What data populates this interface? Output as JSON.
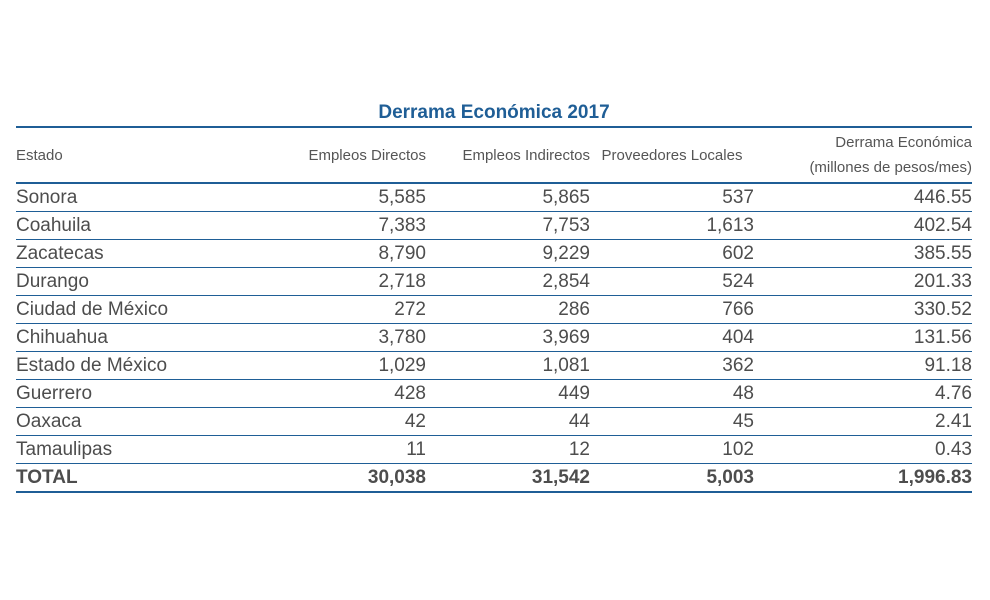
{
  "title": "Derrama Económica 2017",
  "headers": {
    "estado": "Estado",
    "empleos_directos": "Empleos Directos",
    "empleos_indirectos": "Empleos Indirectos",
    "proveedores_locales": "Proveedores Locales",
    "derrama_line1": "Derrama Económica",
    "derrama_line2": "(millones de pesos/mes)"
  },
  "rows": [
    {
      "estado": "Sonora",
      "directos": "5,585",
      "indirectos": "5,865",
      "proveedores": "537",
      "derrama": "446.55"
    },
    {
      "estado": "Coahuila",
      "directos": "7,383",
      "indirectos": "7,753",
      "proveedores": "1,613",
      "derrama": "402.54"
    },
    {
      "estado": "Zacatecas",
      "directos": "8,790",
      "indirectos": "9,229",
      "proveedores": "602",
      "derrama": "385.55"
    },
    {
      "estado": "Durango",
      "directos": "2,718",
      "indirectos": "2,854",
      "proveedores": "524",
      "derrama": "201.33"
    },
    {
      "estado": "Ciudad de México",
      "directos": "272",
      "indirectos": "286",
      "proveedores": "766",
      "derrama": "330.52"
    },
    {
      "estado": "Chihuahua",
      "directos": "3,780",
      "indirectos": "3,969",
      "proveedores": "404",
      "derrama": "131.56"
    },
    {
      "estado": "Estado de México",
      "directos": "1,029",
      "indirectos": "1,081",
      "proveedores": "362",
      "derrama": "91.18"
    },
    {
      "estado": "Guerrero",
      "directos": "428",
      "indirectos": "449",
      "proveedores": "48",
      "derrama": "4.76"
    },
    {
      "estado": "Oaxaca",
      "directos": "42",
      "indirectos": "44",
      "proveedores": "45",
      "derrama": "2.41"
    },
    {
      "estado": "Tamaulipas",
      "directos": "11",
      "indirectos": "12",
      "proveedores": "102",
      "derrama": "0.43"
    }
  ],
  "total": {
    "estado": "TOTAL",
    "directos": "30,038",
    "indirectos": "31,542",
    "proveedores": "5,003",
    "derrama": "1,996.83"
  },
  "colors": {
    "accent": "#1f5e96",
    "text": "#4d4d4d"
  }
}
